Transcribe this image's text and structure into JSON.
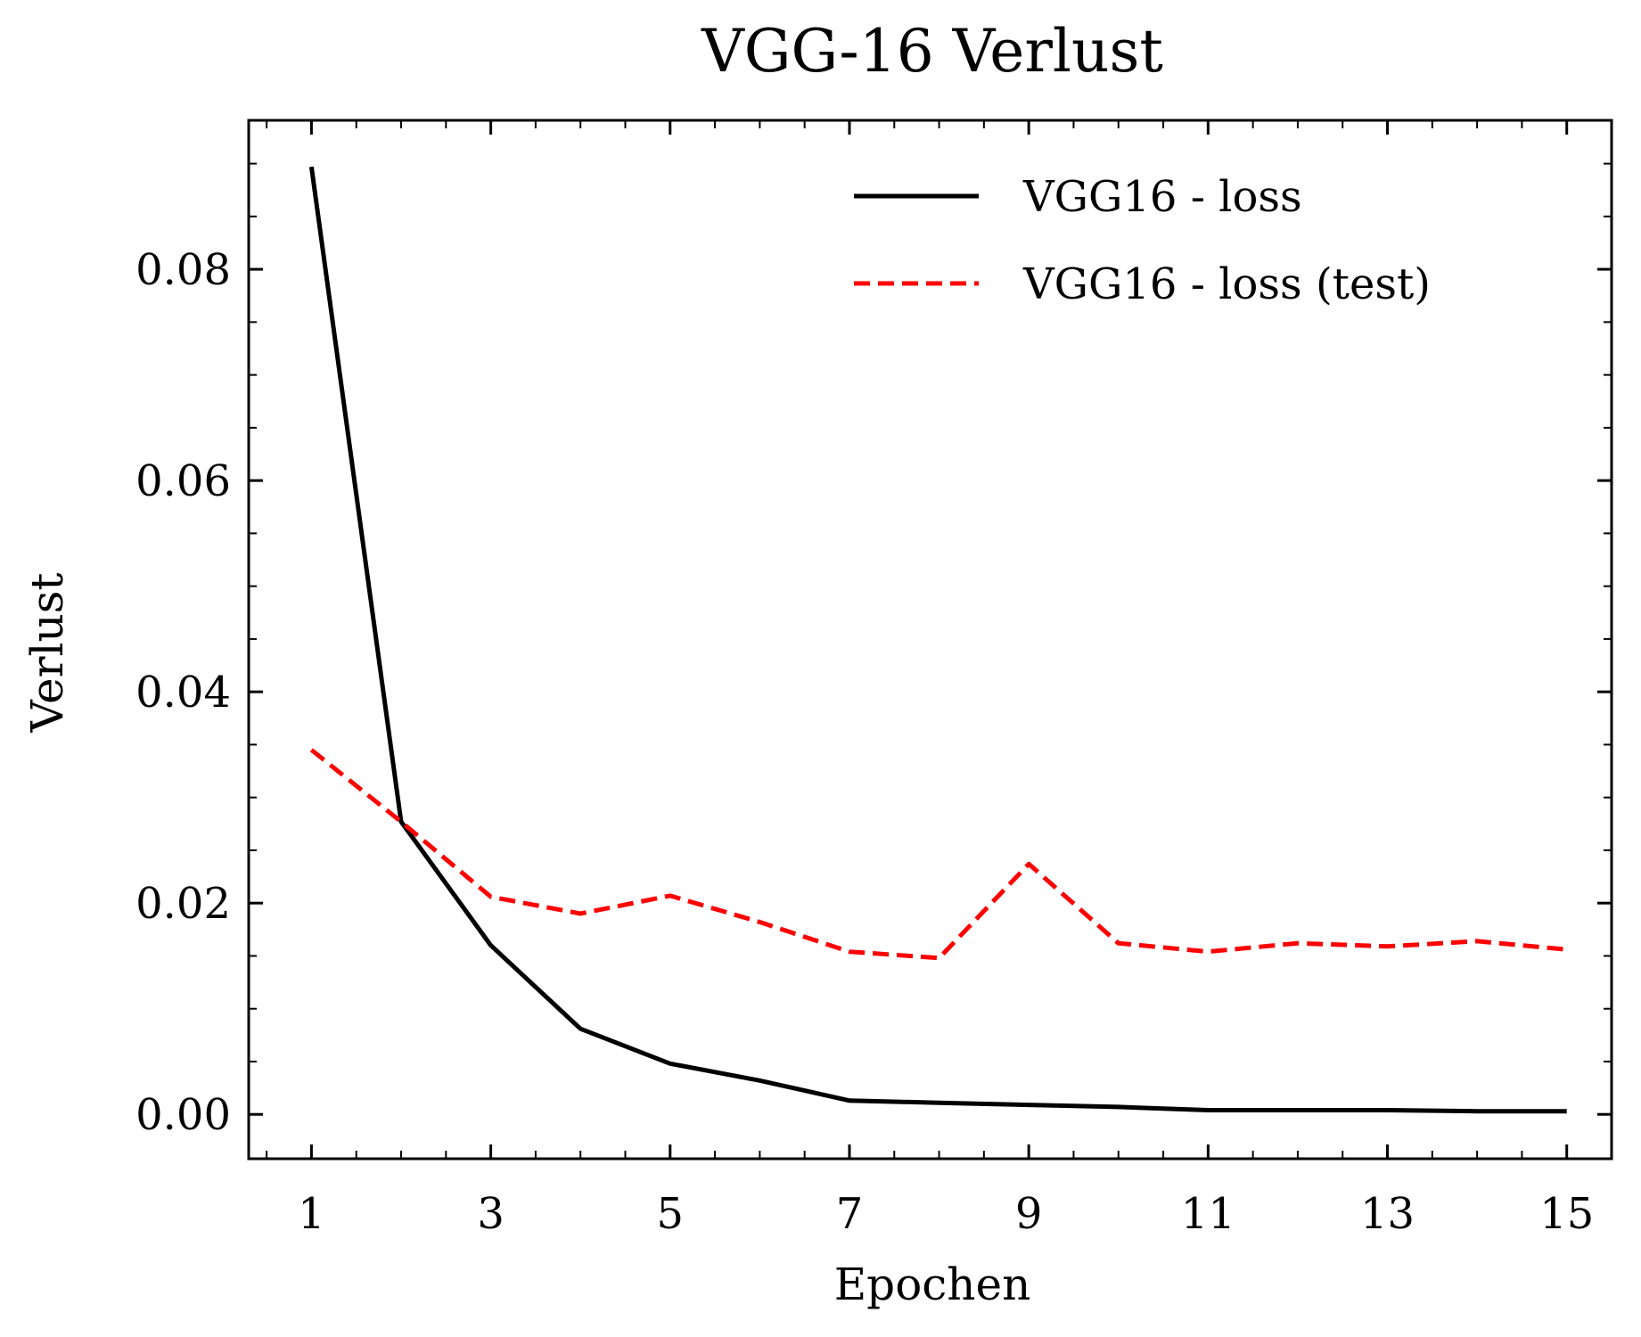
{
  "chart_data": {
    "type": "line",
    "title": "VGG-16 Verlust",
    "xlabel": "Epochen",
    "ylabel": "Verlust",
    "x": [
      1,
      2,
      3,
      4,
      5,
      6,
      7,
      8,
      9,
      10,
      11,
      12,
      13,
      14,
      15
    ],
    "xlim": [
      0.3,
      15.5
    ],
    "ylim": [
      -0.0042,
      0.0941
    ],
    "xticks": [
      1,
      3,
      5,
      7,
      9,
      11,
      13,
      15
    ],
    "xtick_labels": [
      "1",
      "3",
      "5",
      "7",
      "9",
      "11",
      "13",
      "15"
    ],
    "yticks": [
      0.0,
      0.02,
      0.04,
      0.06,
      0.08
    ],
    "ytick_labels": [
      "0.00",
      "0.02",
      "0.04",
      "0.06",
      "0.08"
    ],
    "grid": false,
    "legend_position": "top-right",
    "series": [
      {
        "name": "VGG16 - loss",
        "color": "#000000",
        "style": "solid",
        "values": [
          0.0897,
          0.0277,
          0.016,
          0.0081,
          0.0048,
          0.0032,
          0.0013,
          0.0011,
          0.0009,
          0.0007,
          0.0004,
          0.0004,
          0.0004,
          0.0003,
          0.0003
        ]
      },
      {
        "name": "VGG16 - loss (test)",
        "color": "#ff0000",
        "style": "dashed",
        "values": [
          0.0345,
          0.0277,
          0.0206,
          0.019,
          0.0207,
          0.0182,
          0.0154,
          0.0148,
          0.0237,
          0.0162,
          0.0154,
          0.0162,
          0.0159,
          0.0164,
          0.0156
        ]
      }
    ]
  }
}
